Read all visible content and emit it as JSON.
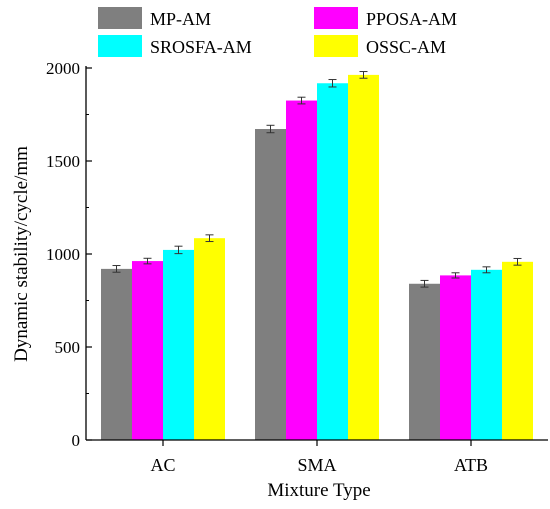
{
  "chart_data": {
    "type": "bar",
    "categories": [
      "AC",
      "SMA",
      "ATB"
    ],
    "series": [
      {
        "name": "MP-AM",
        "color": "#7f7f7f",
        "values": [
          920,
          1672,
          840
        ],
        "errors": [
          18,
          20,
          18
        ]
      },
      {
        "name": "PPOSA-AM",
        "color": "#ff00ff",
        "values": [
          962,
          1825,
          885
        ],
        "errors": [
          15,
          18,
          14
        ]
      },
      {
        "name": "SROSFA-AM",
        "color": "#00ffff",
        "values": [
          1022,
          1918,
          915
        ],
        "errors": [
          20,
          20,
          16
        ]
      },
      {
        "name": "OSSC-AM",
        "color": "#ffff00",
        "values": [
          1085,
          1963,
          958
        ],
        "errors": [
          18,
          18,
          18
        ]
      }
    ],
    "xlabel": "Mixture Type",
    "ylabel": "Dynamic stability/cycle/mm",
    "ylim": [
      0,
      2000
    ],
    "yticks": [
      0,
      500,
      1000,
      1500,
      2000
    ],
    "grid": false,
    "legend_position": "top",
    "error_bars": true
  }
}
